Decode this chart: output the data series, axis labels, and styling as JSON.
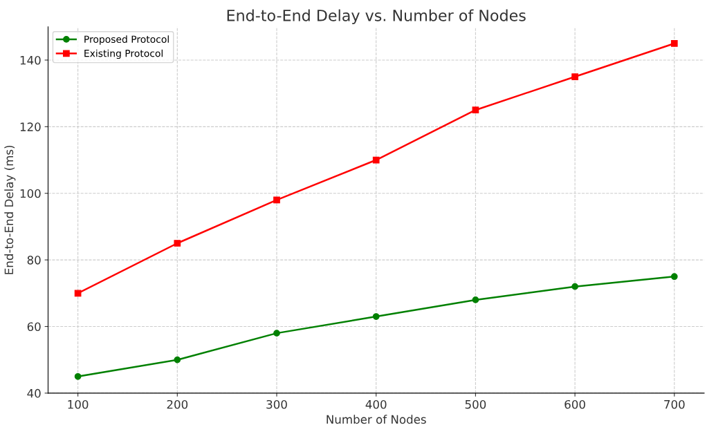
{
  "chart_data": {
    "type": "line",
    "title": "End-to-End Delay vs. Number of Nodes",
    "xlabel": "Number of Nodes",
    "ylabel": "End-to-End Delay (ms)",
    "x": [
      100,
      200,
      300,
      400,
      500,
      600,
      700
    ],
    "series": [
      {
        "name": "Proposed Protocol",
        "color": "#008000",
        "marker": "circle",
        "values": [
          45,
          50,
          58,
          63,
          68,
          72,
          75
        ]
      },
      {
        "name": "Existing Protocol",
        "color": "#ff0000",
        "marker": "square",
        "values": [
          70,
          85,
          98,
          110,
          125,
          135,
          145
        ]
      }
    ],
    "xlim": [
      70,
      730
    ],
    "xticks": [
      100,
      200,
      300,
      400,
      500,
      600,
      700
    ],
    "ylim": [
      40,
      150
    ],
    "yticks": [
      40,
      60,
      80,
      100,
      120,
      140
    ],
    "grid": true,
    "legend": "top left",
    "line_style": "solid"
  }
}
